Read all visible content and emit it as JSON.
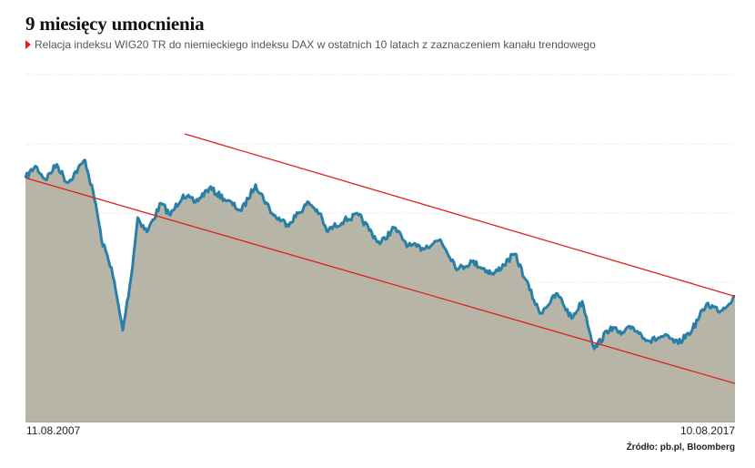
{
  "title": "9 miesięcy umocnienia",
  "subtitle": "Relacja indeksu WIG20 TR do niemieckiego indeksu DAX w ostatnich 10 latach z zaznaczeniem kanału trendowego",
  "source": "Źródło: pb.pl, Bloomberg",
  "colors": {
    "line": "#2a7fa6",
    "area": "#b7b5a8",
    "trend": "#e0201b",
    "grid": "#d8d8d8"
  },
  "chart_data": {
    "type": "area",
    "title": "9 miesięcy umocnienia",
    "x_tick_labels": [
      "11.08.2007",
      "10.08.2017"
    ],
    "x": [
      2007.61,
      2007.75,
      2007.89,
      2008.05,
      2008.2,
      2008.45,
      2008.6,
      2008.68,
      2008.82,
      2008.98,
      2009.1,
      2009.19,
      2009.32,
      2009.52,
      2009.65,
      2009.83,
      2010.0,
      2010.2,
      2010.45,
      2010.65,
      2010.85,
      2011.1,
      2011.3,
      2011.6,
      2011.75,
      2011.85,
      2012.1,
      2012.3,
      2012.6,
      2012.8,
      2013.0,
      2013.2,
      2013.45,
      2013.7,
      2013.9,
      2014.2,
      2014.5,
      2014.65,
      2014.85,
      2015.1,
      2015.3,
      2015.45,
      2015.62,
      2015.85,
      2016.0,
      2016.15,
      2016.4,
      2016.6,
      2016.8,
      2017.0,
      2017.2,
      2017.4,
      2017.6
    ],
    "values": [
      4.78,
      4.92,
      4.76,
      4.94,
      4.72,
      4.99,
      4.47,
      4.05,
      3.72,
      2.98,
      3.62,
      4.31,
      4.14,
      4.48,
      4.34,
      4.58,
      4.49,
      4.66,
      4.51,
      4.39,
      4.7,
      4.34,
      4.23,
      4.49,
      4.36,
      4.15,
      4.28,
      4.34,
      4.0,
      4.19,
      3.98,
      3.95,
      4.05,
      3.7,
      3.79,
      3.64,
      3.88,
      3.58,
      3.18,
      3.41,
      3.12,
      3.32,
      2.76,
      3.02,
      2.93,
      3.02,
      2.85,
      2.91,
      2.82,
      2.99,
      3.29,
      3.21,
      3.38
    ],
    "trend_channel": {
      "upper": {
        "x": [
          2009.85,
          2017.6
        ],
        "y": [
          5.3,
          3.38
        ]
      },
      "lower": {
        "x": [
          2007.61,
          2017.6
        ],
        "y": [
          4.78,
          2.35
        ]
      }
    },
    "ylim": [
      1.9,
      6.0
    ],
    "grid": true,
    "legend": "none"
  }
}
